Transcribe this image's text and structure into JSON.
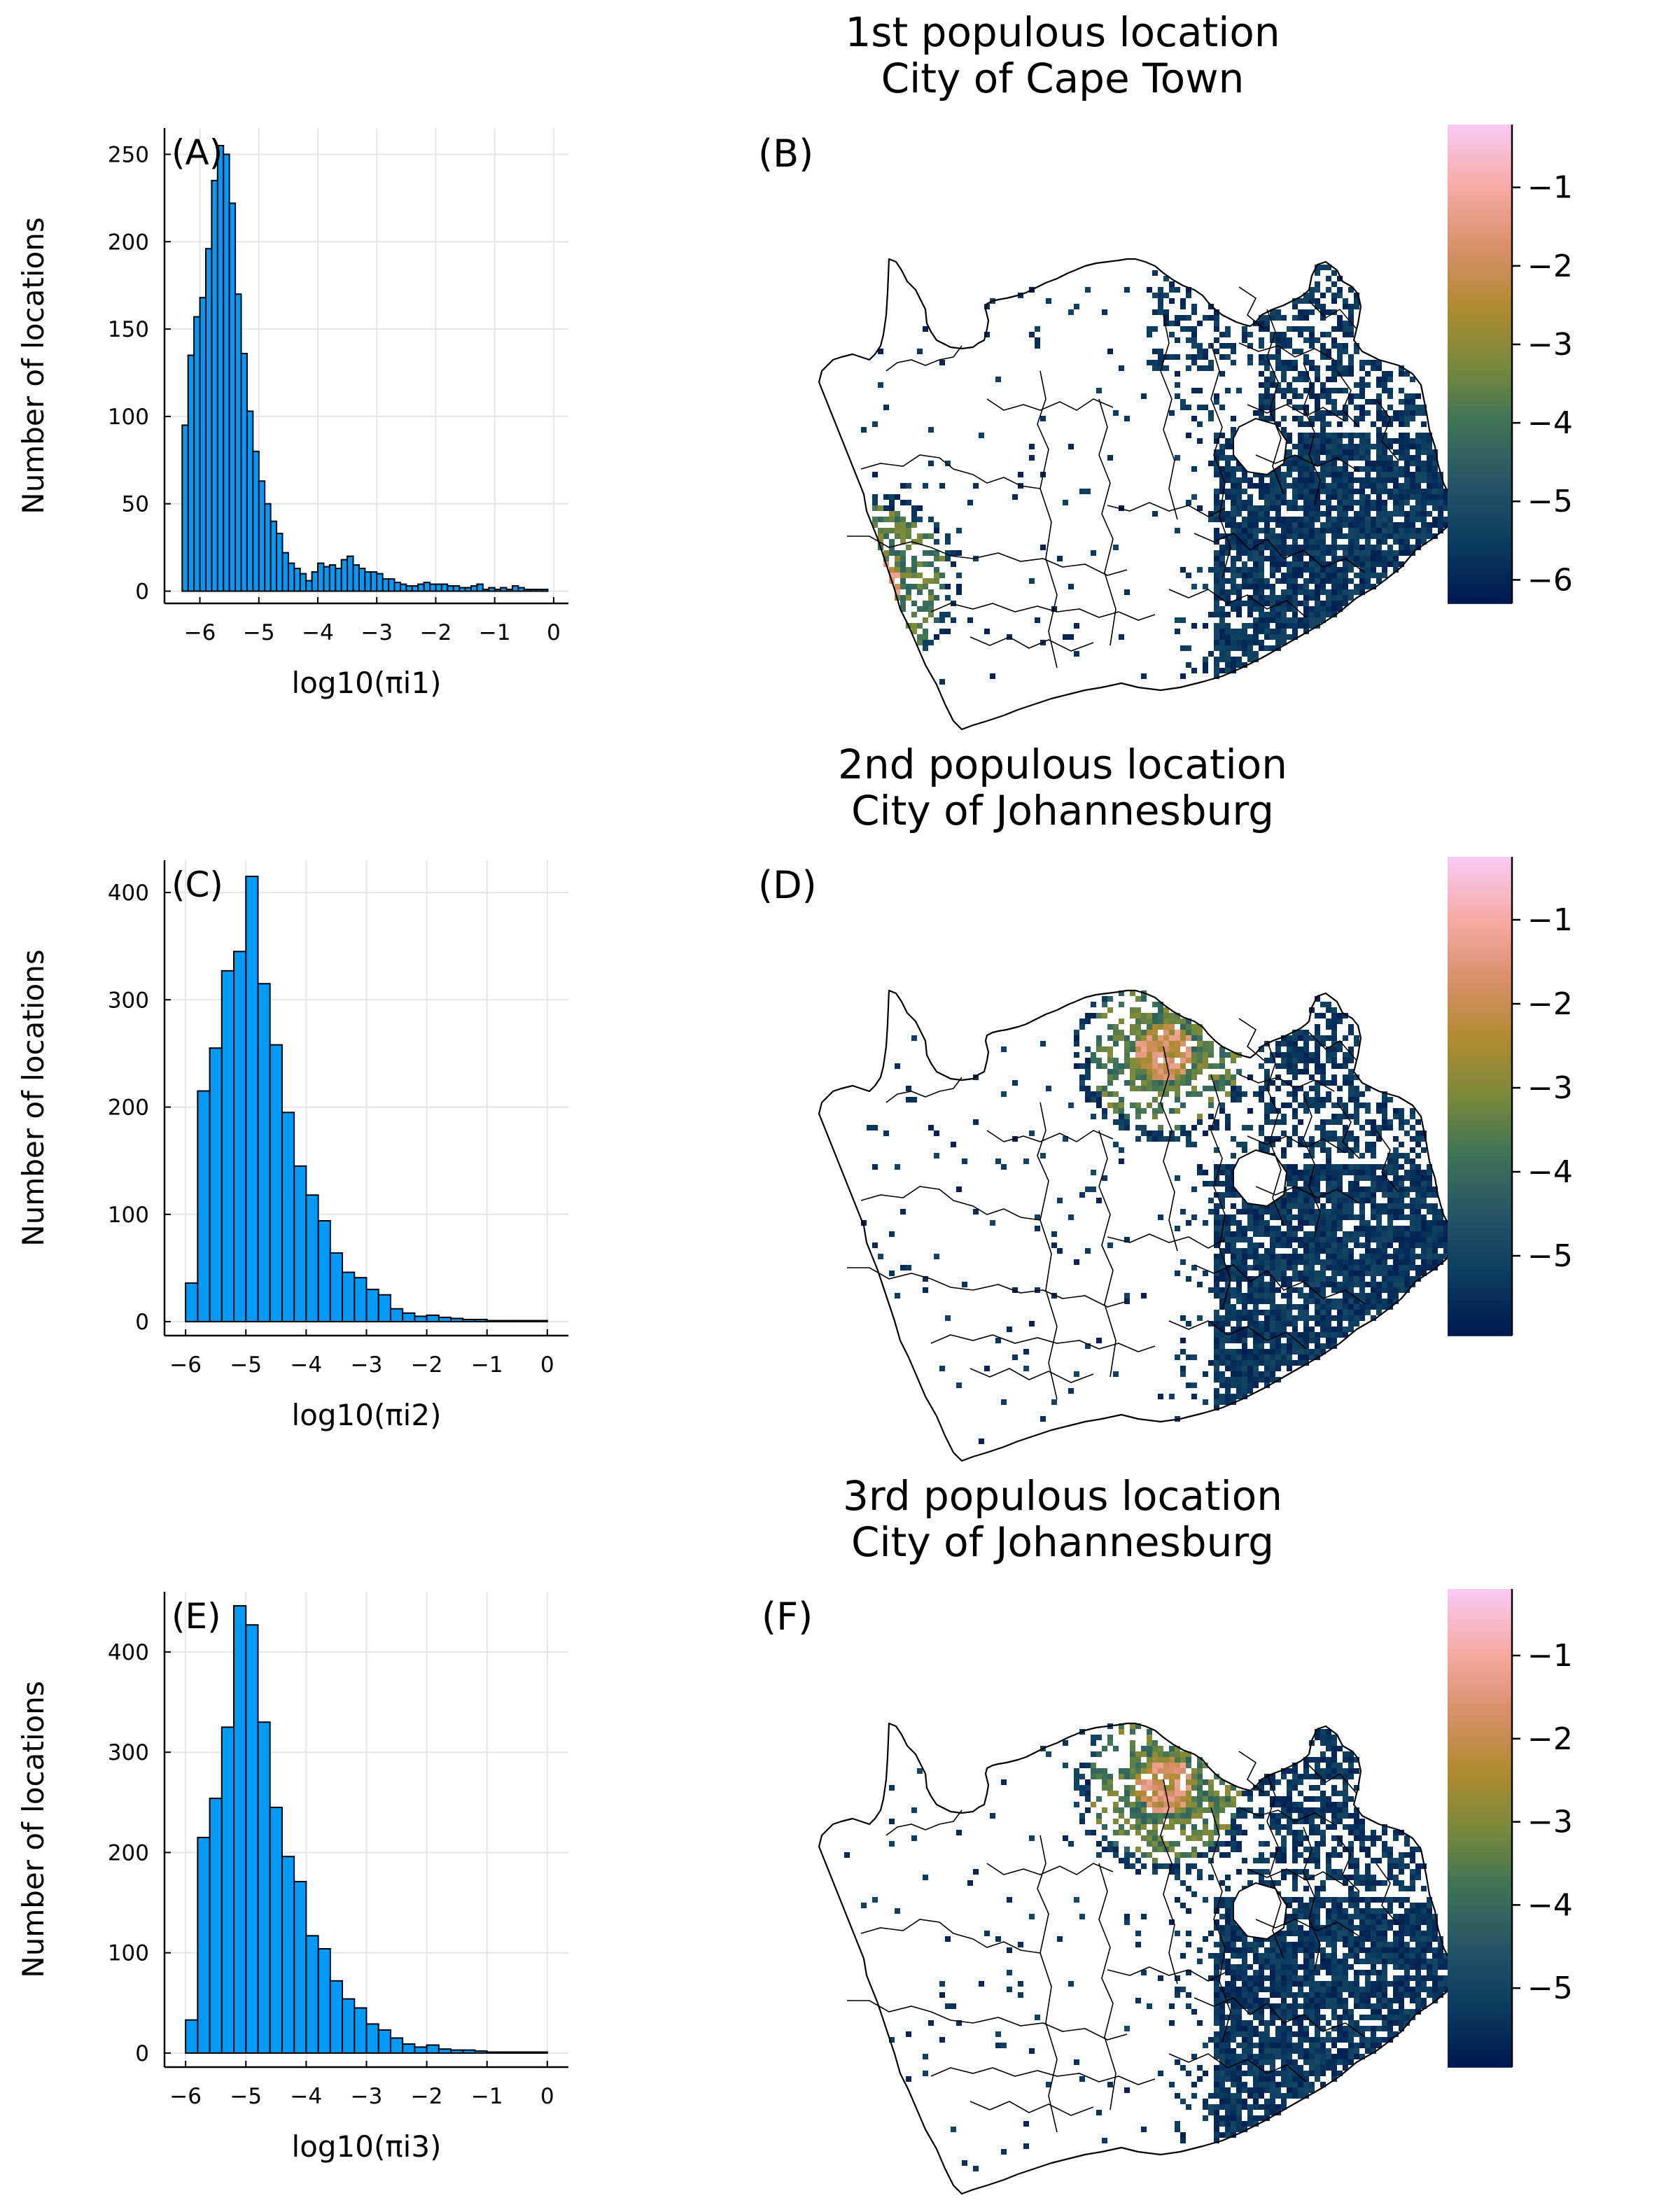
{
  "chart_data": [
    {
      "type": "bar",
      "panel": "(A)",
      "xlabel": "log10(πi1)",
      "ylabel": "Number of locations",
      "xlim": [
        -6.6,
        0.25
      ],
      "ylim": [
        -7,
        265
      ],
      "xticks": [
        -6,
        -5,
        -4,
        -3,
        -2,
        -1,
        0
      ],
      "xtick_labels": [
        "−6",
        "−5",
        "−4",
        "−3",
        "−2",
        "−1",
        "0"
      ],
      "yticks": [
        0,
        50,
        100,
        150,
        200,
        250
      ],
      "ytick_labels": [
        "0",
        "50",
        "100",
        "150",
        "200",
        "250"
      ],
      "grid": true,
      "bin_start": -6.3,
      "bin_width": 0.1,
      "values": [
        95,
        135,
        157,
        168,
        196,
        235,
        255,
        250,
        222,
        170,
        136,
        103,
        80,
        63,
        50,
        40,
        33,
        22,
        16,
        13,
        10,
        6,
        11,
        16,
        14,
        15,
        13,
        18,
        20,
        15,
        13,
        11,
        11,
        10,
        7,
        7,
        5,
        4,
        3,
        3,
        4,
        5,
        4,
        4,
        4,
        3,
        3,
        2,
        2,
        3,
        4,
        1,
        2,
        1,
        2,
        1,
        3,
        2,
        1,
        1,
        1,
        1
      ]
    },
    {
      "type": "bar",
      "panel": "(C)",
      "xlabel": "log10(πi2)",
      "ylabel": "Number of locations",
      "xlim": [
        -6.35,
        0.35
      ],
      "ylim": [
        -13,
        430
      ],
      "xticks": [
        -6,
        -5,
        -4,
        -3,
        -2,
        -1,
        0
      ],
      "xtick_labels": [
        "−6",
        "−5",
        "−4",
        "−3",
        "−2",
        "−1",
        "0"
      ],
      "yticks": [
        0,
        100,
        200,
        300,
        400
      ],
      "ytick_labels": [
        "0",
        "100",
        "200",
        "300",
        "400"
      ],
      "grid": true,
      "bin_start": -6.0,
      "bin_width": 0.2,
      "values": [
        36,
        215,
        255,
        327,
        345,
        415,
        315,
        258,
        195,
        145,
        118,
        94,
        64,
        46,
        41,
        30,
        25,
        12,
        8,
        5,
        6,
        4,
        3,
        2,
        2,
        1,
        1,
        1,
        1,
        1
      ]
    },
    {
      "type": "bar",
      "panel": "(E)",
      "xlabel": "log10(πi3)",
      "ylabel": "Number of locations",
      "xlim": [
        -6.35,
        0.35
      ],
      "ylim": [
        -14,
        460
      ],
      "xticks": [
        -6,
        -5,
        -4,
        -3,
        -2,
        -1,
        0
      ],
      "xtick_labels": [
        "−6",
        "−5",
        "−4",
        "−3",
        "−2",
        "−1",
        "0"
      ],
      "yticks": [
        0,
        100,
        200,
        300,
        400
      ],
      "ytick_labels": [
        "0",
        "100",
        "200",
        "300",
        "400"
      ],
      "grid": true,
      "bin_start": -6.0,
      "bin_width": 0.2,
      "values": [
        33,
        215,
        254,
        325,
        446,
        427,
        330,
        245,
        196,
        171,
        117,
        104,
        72,
        54,
        45,
        29,
        23,
        15,
        9,
        6,
        8,
        4,
        3,
        3,
        2,
        1,
        1,
        1,
        1,
        1
      ]
    },
    {
      "type": "heatmap",
      "panel": "(B)",
      "title": "1st populous location\nCity of Cape Town",
      "colorbar_ticks": [
        -1,
        -2,
        -3,
        -4,
        -5,
        -6
      ],
      "colorbar_labels": [
        "−1",
        "−2",
        "−3",
        "−4",
        "−5",
        "−6"
      ],
      "colorbar_range": [
        -6.3,
        -0.2
      ],
      "hotspot": "Cape Town"
    },
    {
      "type": "heatmap",
      "panel": "(D)",
      "title": "2nd populous location\nCity of Johannesburg",
      "colorbar_ticks": [
        -1,
        -2,
        -3,
        -4,
        -5
      ],
      "colorbar_labels": [
        "−1",
        "−2",
        "−3",
        "−4",
        "−5"
      ],
      "colorbar_range": [
        -5.95,
        -0.25
      ],
      "hotspot": "Johannesburg"
    },
    {
      "type": "heatmap",
      "panel": "(F)",
      "title": "3rd populous location\nCity of Johannesburg",
      "colorbar_ticks": [
        -1,
        -2,
        -3,
        -4,
        -5
      ],
      "colorbar_labels": [
        "−1",
        "−2",
        "−3",
        "−4",
        "−5"
      ],
      "colorbar_range": [
        -5.95,
        -0.2
      ],
      "hotspot": "Johannesburg"
    }
  ],
  "colors": {
    "bar_fill": "#009af9",
    "bar_stroke": "#000000",
    "grid": "#e6e6e6",
    "colorscale": [
      "#001a50",
      "#0a3d60",
      "#255566",
      "#3d7358",
      "#7a8a3a",
      "#b08a30",
      "#d8906a",
      "#f7aaa4",
      "#f8c8f0"
    ]
  }
}
